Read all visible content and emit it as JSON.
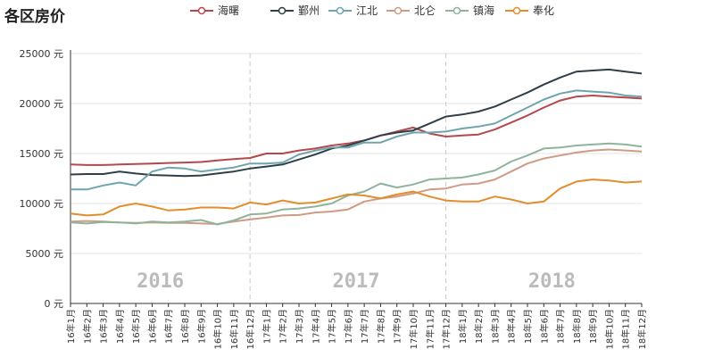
{
  "chart_data": {
    "type": "line",
    "title": "各区房价",
    "y_unit": "元",
    "ylim": [
      0,
      25000
    ],
    "yticks": [
      0,
      5000,
      10000,
      15000,
      20000,
      25000
    ],
    "ytick_labels": [
      "0 元",
      "5000 元",
      "10000 元",
      "15000 元",
      "20000 元",
      "25000 元"
    ],
    "grid": true,
    "legend_position": "top",
    "categories": [
      "16年1月",
      "16年2月",
      "16年3月",
      "16年4月",
      "16年5月",
      "16年6月",
      "16年7月",
      "16年8月",
      "16年9月",
      "16年10月",
      "16年11月",
      "16年12月",
      "17年1月",
      "17年2月",
      "17年3月",
      "17年4月",
      "17年5月",
      "17年6月",
      "17年7月",
      "17年8月",
      "17年9月",
      "17年10月",
      "17年11月",
      "17年12月",
      "18年1月",
      "18年2月",
      "18年3月",
      "18年4月",
      "18年5月",
      "18年6月",
      "18年7月",
      "18年8月",
      "18年9月",
      "18年10月",
      "18年11月",
      "18年12月"
    ],
    "year_labels": [
      "2016",
      "2017",
      "2018"
    ],
    "series": [
      {
        "name": "海曙",
        "color": "#b5484c",
        "values": [
          13900,
          13850,
          13850,
          13900,
          13950,
          14000,
          14050,
          14100,
          14150,
          14300,
          14450,
          14550,
          15000,
          15000,
          15300,
          15500,
          15800,
          16000,
          16300,
          16800,
          17200,
          17600,
          17000,
          16700,
          16800,
          16900,
          17400,
          18100,
          18800,
          19600,
          20300,
          20700,
          20800,
          20700,
          20600,
          20500
        ]
      },
      {
        "name": "鄞州",
        "color": "#2f3f4a",
        "values": [
          12900,
          12950,
          12950,
          13200,
          13000,
          12850,
          12800,
          12750,
          12800,
          13000,
          13200,
          13500,
          13700,
          13900,
          14400,
          14900,
          15500,
          15800,
          16300,
          16800,
          17100,
          17300,
          18000,
          18700,
          18900,
          19200,
          19700,
          20400,
          21100,
          21900,
          22600,
          23200,
          23300,
          23400,
          23200,
          23000
        ]
      },
      {
        "name": "江北",
        "color": "#6fa5ad",
        "values": [
          11400,
          11400,
          11800,
          12100,
          11800,
          13200,
          13600,
          13500,
          13200,
          13400,
          13600,
          14000,
          14000,
          14100,
          14900,
          15300,
          15600,
          15600,
          16100,
          16100,
          16700,
          17100,
          17100,
          17200,
          17500,
          17700,
          18000,
          18800,
          19600,
          20400,
          21000,
          21300,
          21200,
          21100,
          20800,
          20700
        ]
      },
      {
        "name": "北仑",
        "color": "#cf9b84",
        "values": [
          8200,
          8250,
          8200,
          8100,
          8050,
          8100,
          8050,
          8050,
          8000,
          7950,
          8200,
          8400,
          8600,
          8800,
          8850,
          9100,
          9200,
          9400,
          10200,
          10500,
          10700,
          11000,
          11400,
          11500,
          11900,
          12000,
          12400,
          13200,
          14000,
          14500,
          14800,
          15100,
          15300,
          15400,
          15300,
          15200
        ]
      },
      {
        "name": "镇海",
        "color": "#8fb39b",
        "values": [
          8100,
          8000,
          8150,
          8100,
          8000,
          8200,
          8100,
          8200,
          8350,
          7900,
          8300,
          8900,
          9000,
          9400,
          9500,
          9700,
          10000,
          10800,
          11200,
          12000,
          11600,
          11900,
          12400,
          12500,
          12600,
          12900,
          13300,
          14200,
          14800,
          15500,
          15600,
          15800,
          15900,
          16000,
          15900,
          15700
        ]
      },
      {
        "name": "奉化",
        "color": "#e28e2e",
        "values": [
          9000,
          8800,
          8900,
          9700,
          10000,
          9700,
          9300,
          9400,
          9600,
          9600,
          9500,
          10100,
          9900,
          10300,
          10000,
          10100,
          10500,
          10900,
          10800,
          10500,
          10900,
          11200,
          10700,
          10300,
          10200,
          10200,
          10700,
          10400,
          10000,
          10200,
          11500,
          12200,
          12400,
          12300,
          12100,
          12200
        ]
      }
    ]
  }
}
